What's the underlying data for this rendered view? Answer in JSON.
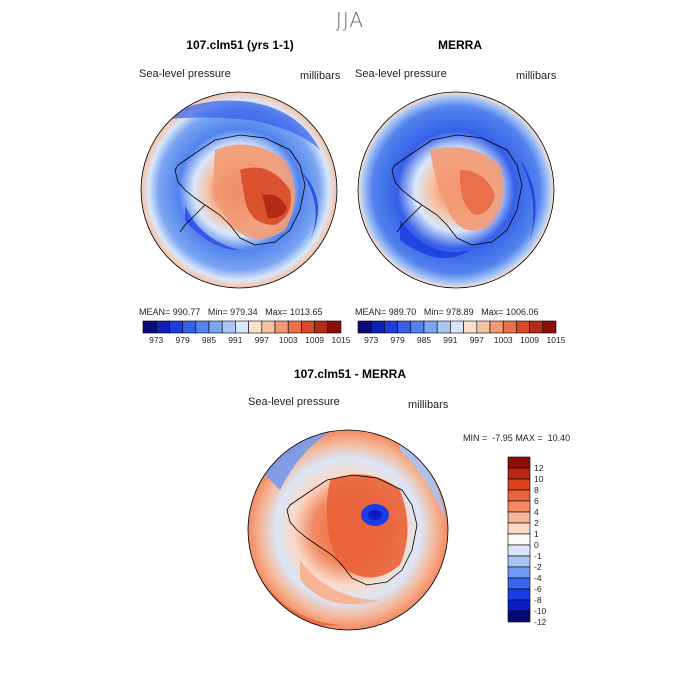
{
  "title": "JJA",
  "colors": {
    "abs_scale": [
      "#0a0a78",
      "#1020b0",
      "#1c3ce0",
      "#3560e8",
      "#5283ee",
      "#7aa5f2",
      "#a9c6f5",
      "#d9e6fa",
      "#fbe0cc",
      "#f6c2a3",
      "#f29a74",
      "#ea6f4b",
      "#d84a28",
      "#b52a15",
      "#8a0f0a"
    ],
    "diff_scale": [
      "#08086e",
      "#0a1cc8",
      "#1a3ee6",
      "#3866ee",
      "#6f9af2",
      "#a7c4f5",
      "#dae6f8",
      "#fbfaf7",
      "#fad9c6",
      "#f6b595",
      "#f28a63",
      "#ea6238",
      "#d8431c",
      "#b82810",
      "#8c0c08"
    ]
  },
  "panels": [
    {
      "title": "107.clm51 (yrs 1-1)",
      "variable": "Sea-level pressure",
      "units": "millibars",
      "mean_label": "MEAN=",
      "mean": "990.77",
      "min_label": "Min=",
      "min": "979.34",
      "max_label": "Max=",
      "max": "1013.65"
    },
    {
      "title": "MERRA",
      "variable": "Sea-level pressure",
      "units": "millibars",
      "mean_label": "MEAN=",
      "mean": "989.70",
      "min_label": "Min=",
      "min": "978.89",
      "max_label": "Max=",
      "max": "1006.06"
    },
    {
      "title": "107.clm51 - MERRA",
      "variable": "Sea-level pressure",
      "units": "millibars",
      "min_label": "MIN =",
      "min": "-7.95",
      "max_label": "MAX =",
      "max": "10.40"
    }
  ],
  "chart_data": [
    {
      "type": "heatmap",
      "projection": "south-polar-stereographic",
      "title": "107.clm51 (yrs 1-1)",
      "subtitle": "Sea-level pressure",
      "units": "millibars",
      "mean": 990.77,
      "min": 979.34,
      "max": 1013.65,
      "colorbar_levels": [
        973,
        979,
        985,
        991,
        997,
        1003,
        1009,
        1015
      ],
      "colorbar_placement": "bottom"
    },
    {
      "type": "heatmap",
      "projection": "south-polar-stereographic",
      "title": "MERRA",
      "subtitle": "Sea-level pressure",
      "units": "millibars",
      "mean": 989.7,
      "min": 978.89,
      "max": 1006.06,
      "colorbar_levels": [
        973,
        979,
        985,
        991,
        997,
        1003,
        1009,
        1015
      ],
      "colorbar_placement": "bottom"
    },
    {
      "type": "heatmap",
      "projection": "south-polar-stereographic",
      "title": "107.clm51 - MERRA",
      "subtitle": "Sea-level pressure",
      "units": "millibars",
      "min": -7.95,
      "max": 10.4,
      "colorbar_levels": [
        12,
        10,
        8,
        6,
        4,
        2,
        1,
        0,
        -1,
        -2,
        -4,
        -6,
        -8,
        -10,
        -12
      ],
      "colorbar_placement": "right"
    }
  ]
}
